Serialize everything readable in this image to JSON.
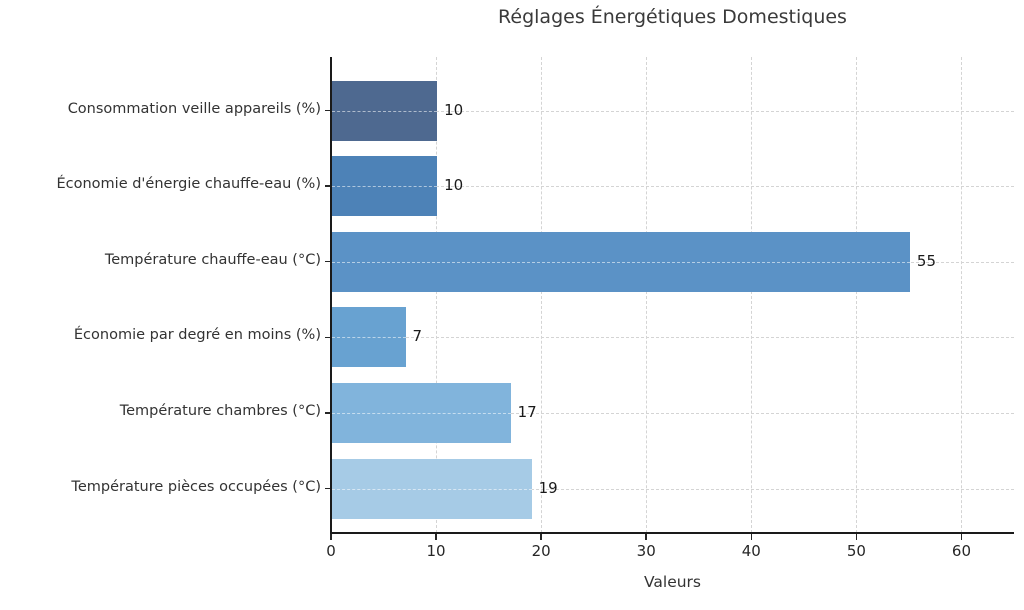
{
  "chart_data": {
    "type": "bar",
    "orientation": "horizontal",
    "title": "Réglages Énergétiques Domestiques",
    "xlabel": "Valeurs",
    "categories": [
      "Consommation veille appareils (%)",
      "Économie d'énergie chauffe-eau (%)",
      "Température chauffe-eau (°C)",
      "Économie par degré en moins (%)",
      "Température chambres (°C)",
      "Température pièces occupées (°C)"
    ],
    "values": [
      10,
      10,
      55,
      7,
      17,
      19
    ],
    "value_labels": [
      "10",
      "10",
      "55",
      "7",
      "17",
      "19"
    ],
    "bar_colors": [
      "#4e6990",
      "#4d82b7",
      "#5b92c6",
      "#68a2d1",
      "#81b4dc",
      "#a6cbe6"
    ],
    "xticks": [
      0,
      10,
      20,
      30,
      40,
      50,
      60
    ],
    "xtick_labels": [
      "0",
      "10",
      "20",
      "30",
      "40",
      "50",
      "60"
    ],
    "xlim": [
      0,
      65
    ],
    "grid": "dashed",
    "legend": "none"
  },
  "colors": {
    "background": "#ffffff",
    "spine": "#1a1a1a",
    "grid": "#d4d4d4",
    "title_text": "#3a3a3a",
    "tick_text": "#262626",
    "label_text": "#333333"
  }
}
